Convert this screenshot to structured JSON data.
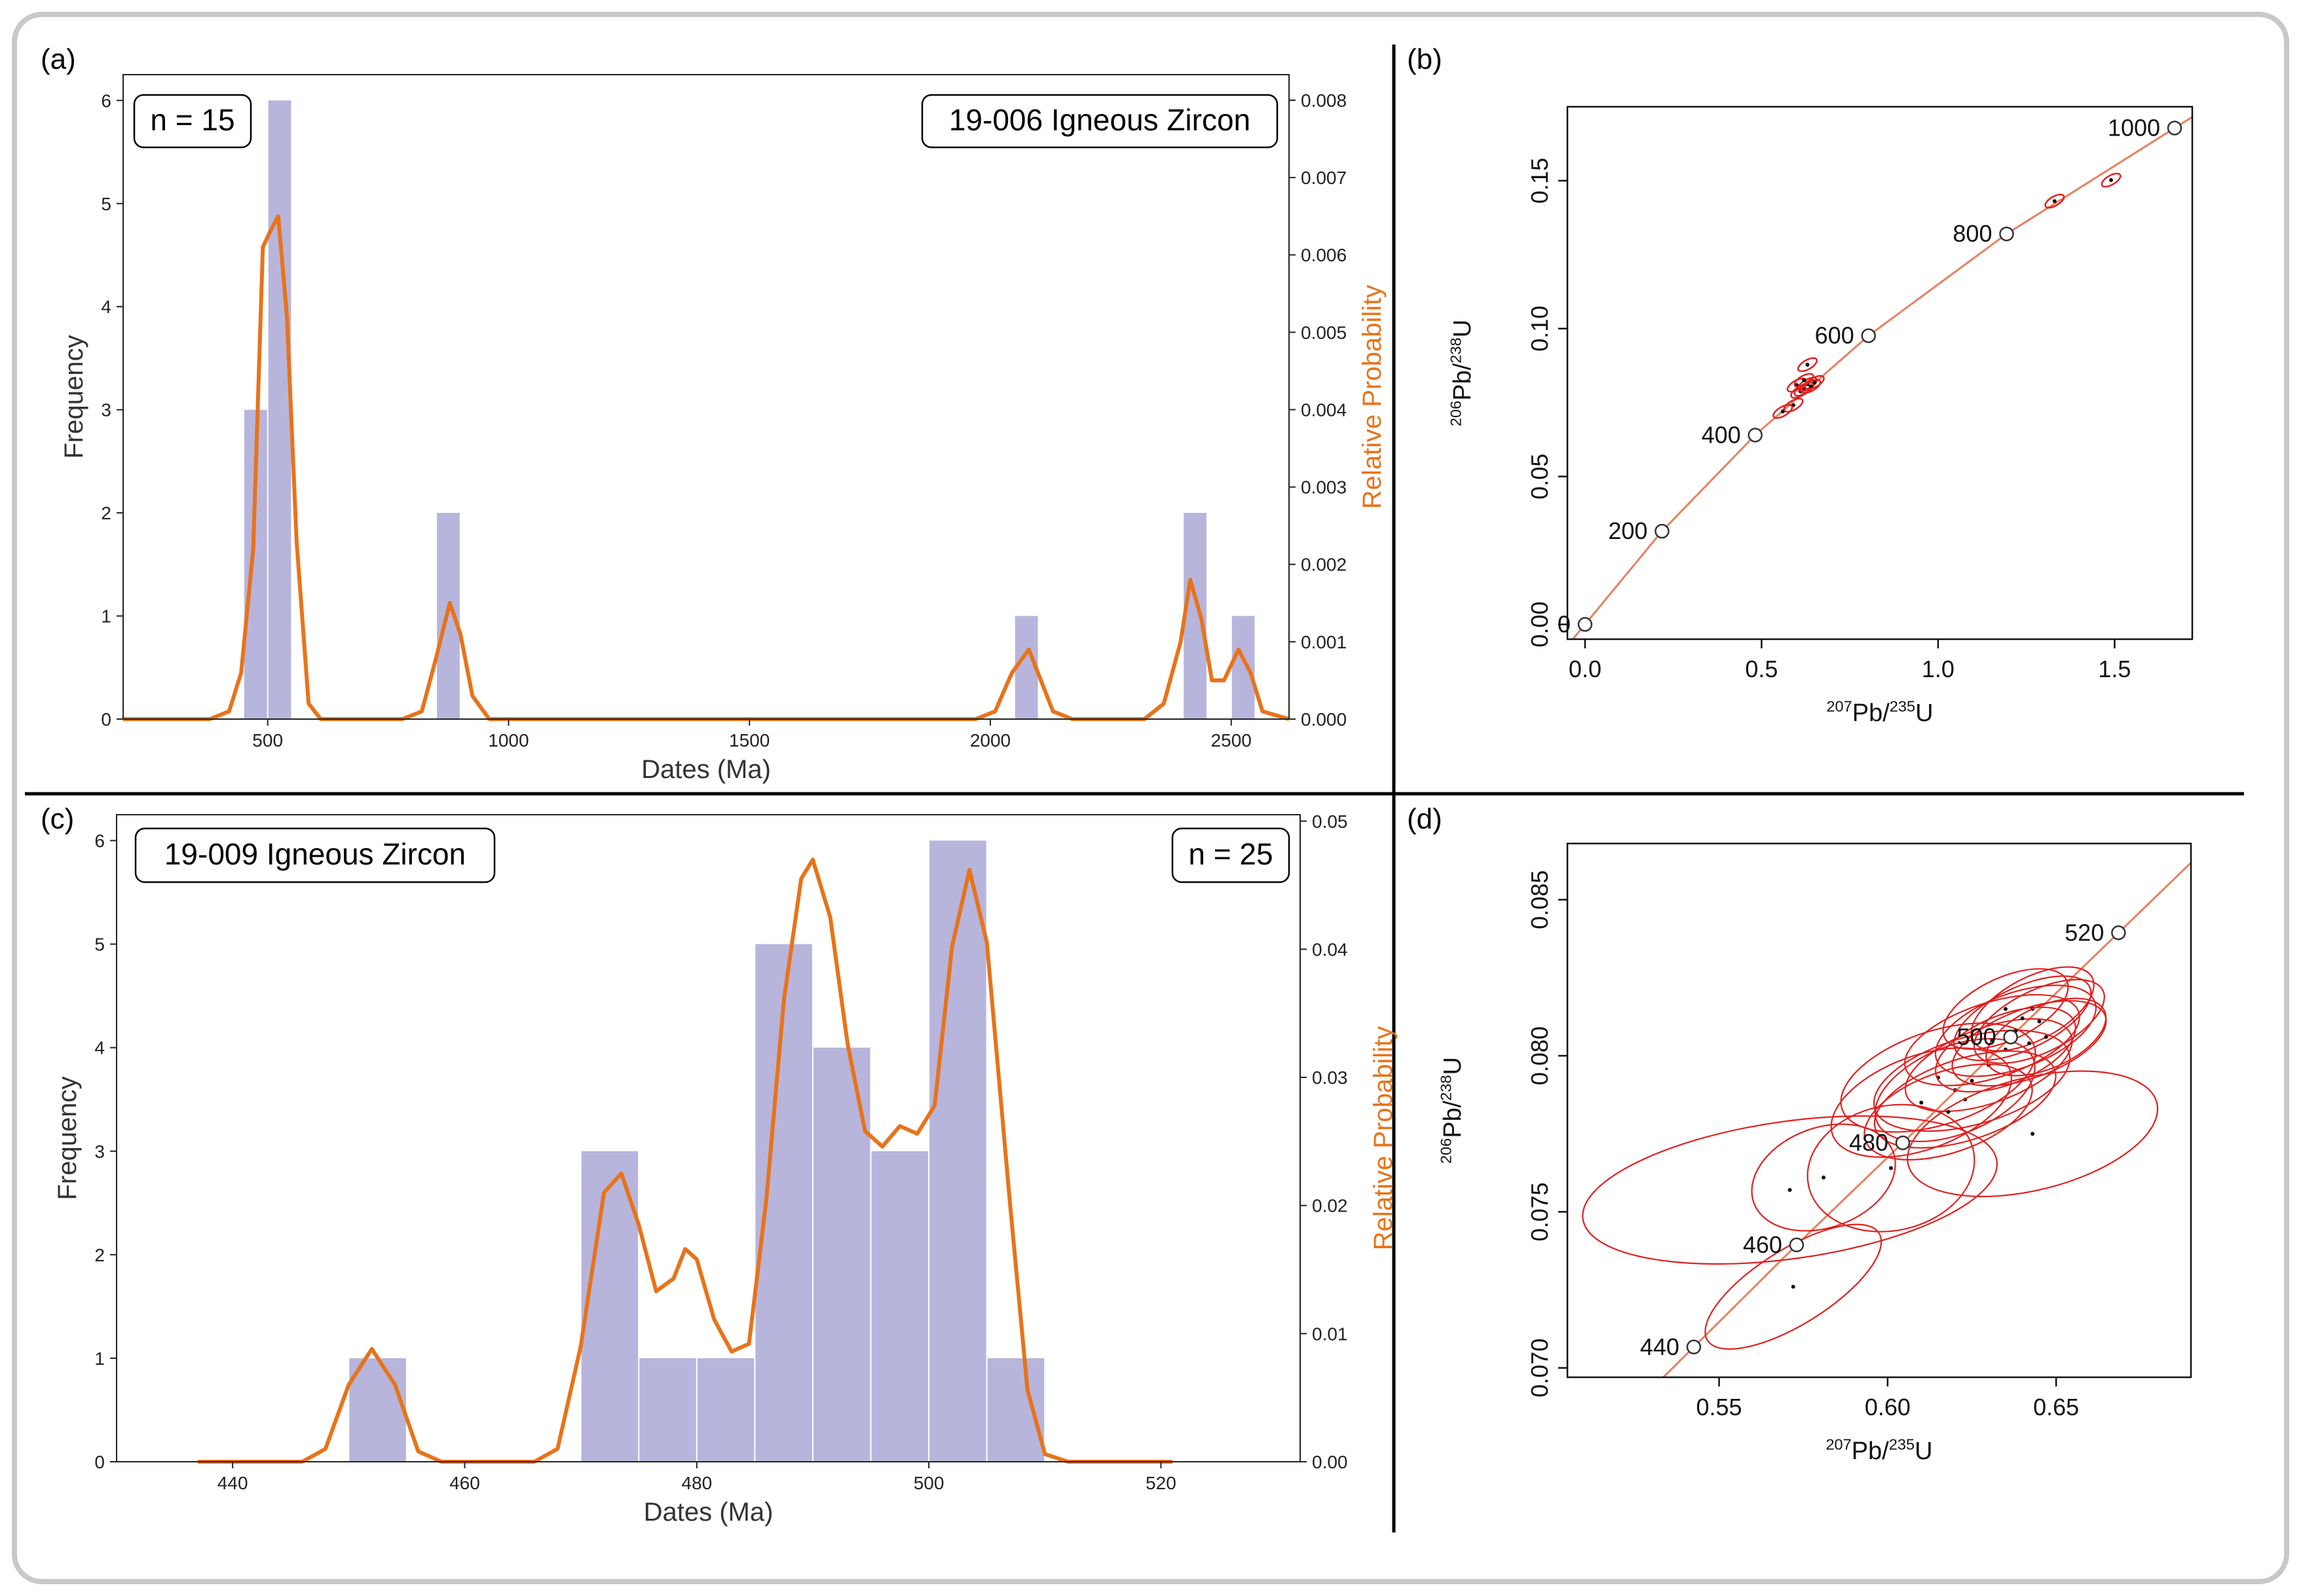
{
  "panels": {
    "a": {
      "letter": "(a)",
      "n_label": "n = 15",
      "sample_label": "19-006 Igneous Zircon"
    },
    "b": {
      "letter": "(b)"
    },
    "c": {
      "letter": "(c)",
      "n_label": "n = 25",
      "sample_label": "19-009 Igneous Zircon"
    },
    "d": {
      "letter": "(d)"
    }
  },
  "chart_data": [
    {
      "id": "a",
      "type": "bar",
      "xlabel": "Dates (Ma)",
      "ylabel": "Frequency",
      "y2label": "Relative Probability",
      "xlim": [
        200,
        2620
      ],
      "ylim": [
        0,
        6.25
      ],
      "y2lim": [
        0,
        0.00833
      ],
      "xticks": [
        500,
        1000,
        1500,
        2000,
        2500
      ],
      "yticks": [
        0,
        1,
        2,
        3,
        4,
        5,
        6
      ],
      "y2ticks": [
        "0.000",
        "0.001",
        "0.002",
        "0.003",
        "0.004",
        "0.005",
        "0.006",
        "0.007",
        "0.008"
      ],
      "bars": [
        {
          "x0": 450,
          "x1": 500,
          "value": 3
        },
        {
          "x0": 500,
          "x1": 550,
          "value": 6
        },
        {
          "x0": 850,
          "x1": 900,
          "value": 2
        },
        {
          "x0": 2050,
          "x1": 2100,
          "value": 1
        },
        {
          "x0": 2400,
          "x1": 2450,
          "value": 2
        },
        {
          "x0": 2500,
          "x1": 2550,
          "value": 1
        }
      ],
      "bar_color": "#b7b5dc",
      "curve_color": "#e8731a",
      "curve": [
        [
          200,
          0
        ],
        [
          380,
          0
        ],
        [
          420,
          0.0001
        ],
        [
          445,
          0.0006
        ],
        [
          470,
          0.0022
        ],
        [
          490,
          0.0061
        ],
        [
          505,
          0.0063
        ],
        [
          522,
          0.0065
        ],
        [
          540,
          0.0052
        ],
        [
          560,
          0.0023
        ],
        [
          585,
          0.0002
        ],
        [
          610,
          0
        ],
        [
          780,
          0
        ],
        [
          820,
          0.0001
        ],
        [
          850,
          0.0008
        ],
        [
          878,
          0.0015
        ],
        [
          900,
          0.0011
        ],
        [
          925,
          0.0003
        ],
        [
          960,
          0
        ],
        [
          1970,
          0
        ],
        [
          2010,
          0.0001
        ],
        [
          2045,
          0.0006
        ],
        [
          2080,
          0.0009
        ],
        [
          2105,
          0.0005
        ],
        [
          2130,
          0.0001
        ],
        [
          2170,
          0
        ],
        [
          2320,
          0
        ],
        [
          2360,
          0.0002
        ],
        [
          2395,
          0.001
        ],
        [
          2415,
          0.0018
        ],
        [
          2438,
          0.0013
        ],
        [
          2460,
          0.0005
        ],
        [
          2485,
          0.0005
        ],
        [
          2515,
          0.0009
        ],
        [
          2540,
          0.0006
        ],
        [
          2565,
          0.0001
        ],
        [
          2620,
          0
        ]
      ]
    },
    {
      "id": "b",
      "type": "scatter",
      "xlabel_main": "Pb/",
      "xlabel_sup1": "207",
      "xlabel_sup2": "235",
      "xlabel_tail": "U",
      "ylabel_main": "Pb/",
      "ylabel_sup1": "206",
      "ylabel_sup2": "238",
      "ylabel_tail": "U",
      "xlim": [
        -0.05,
        1.72
      ],
      "ylim": [
        -0.005,
        0.175
      ],
      "xticks": [
        "0.0",
        "0.5",
        "1.0",
        "1.5"
      ],
      "yticks": [
        "0.00",
        "0.05",
        "0.10",
        "0.15"
      ],
      "concordia_points": [
        {
          "age": "0",
          "x": 0.0,
          "y": 0.0
        },
        {
          "age": "200",
          "x": 0.218,
          "y": 0.0315
        },
        {
          "age": "400",
          "x": 0.482,
          "y": 0.064
        },
        {
          "age": "600",
          "x": 0.803,
          "y": 0.0976
        },
        {
          "age": "800",
          "x": 1.194,
          "y": 0.132
        },
        {
          "age": "1000",
          "x": 1.67,
          "y": 0.1678
        }
      ],
      "ellipse_centers": [
        [
          0.6,
          0.0809
        ],
        [
          0.61,
          0.0788
        ],
        [
          0.62,
          0.0795
        ],
        [
          0.63,
          0.0812
        ],
        [
          0.64,
          0.0805
        ],
        [
          0.62,
          0.0825
        ],
        [
          0.59,
          0.0741
        ],
        [
          0.56,
          0.072
        ],
        [
          0.65,
          0.0818
        ],
        [
          0.63,
          0.0878
        ],
        [
          1.33,
          0.1431
        ],
        [
          1.49,
          0.1502
        ]
      ],
      "curve_color": "#e88060",
      "ellipse_color": "#e02020"
    },
    {
      "id": "c",
      "type": "bar",
      "xlabel": "Dates (Ma)",
      "ylabel": "Frequency",
      "y2label": "Relative Probability",
      "xlim": [
        430,
        532
      ],
      "ylim": [
        0,
        6.25
      ],
      "y2lim": [
        0,
        0.0505
      ],
      "xticks": [
        440,
        460,
        480,
        500,
        520
      ],
      "yticks": [
        0,
        1,
        2,
        3,
        4,
        5,
        6
      ],
      "y2ticks": [
        "0.00",
        "0.01",
        "0.02",
        "0.03",
        "0.04",
        "0.05"
      ],
      "bars": [
        {
          "x0": 450,
          "x1": 455,
          "value": 1
        },
        {
          "x0": 470,
          "x1": 475,
          "value": 3
        },
        {
          "x0": 475,
          "x1": 480,
          "value": 1
        },
        {
          "x0": 480,
          "x1": 485,
          "value": 1
        },
        {
          "x0": 485,
          "x1": 490,
          "value": 5
        },
        {
          "x0": 490,
          "x1": 495,
          "value": 4
        },
        {
          "x0": 495,
          "x1": 500,
          "value": 3
        },
        {
          "x0": 500,
          "x1": 505,
          "value": 6
        },
        {
          "x0": 505,
          "x1": 510,
          "value": 1
        }
      ],
      "bar_color": "#b7b5dc",
      "curve_color": "#e8731a",
      "curve": [
        [
          437,
          0
        ],
        [
          446,
          0
        ],
        [
          448,
          0.001
        ],
        [
          450,
          0.006
        ],
        [
          452,
          0.0088
        ],
        [
          454,
          0.006
        ],
        [
          456,
          0.0008
        ],
        [
          458,
          0
        ],
        [
          466,
          0
        ],
        [
          468,
          0.001
        ],
        [
          470,
          0.009
        ],
        [
          472,
          0.021
        ],
        [
          473.5,
          0.0225
        ],
        [
          475,
          0.0185
        ],
        [
          476.5,
          0.0133
        ],
        [
          478,
          0.0143
        ],
        [
          479,
          0.0166
        ],
        [
          480,
          0.0158
        ],
        [
          481.5,
          0.0111
        ],
        [
          483,
          0.0086
        ],
        [
          484.5,
          0.0092
        ],
        [
          486,
          0.0205
        ],
        [
          487.5,
          0.036
        ],
        [
          489,
          0.0455
        ],
        [
          490,
          0.047
        ],
        [
          491.5,
          0.0425
        ],
        [
          493,
          0.0326
        ],
        [
          494.5,
          0.0258
        ],
        [
          496,
          0.0246
        ],
        [
          497.5,
          0.0262
        ],
        [
          499,
          0.0256
        ],
        [
          500.5,
          0.0278
        ],
        [
          502,
          0.0402
        ],
        [
          503.5,
          0.0462
        ],
        [
          505,
          0.0405
        ],
        [
          507,
          0.0201
        ],
        [
          508.5,
          0.0056
        ],
        [
          510,
          0.0006
        ],
        [
          512,
          0
        ],
        [
          521,
          0
        ]
      ]
    },
    {
      "id": "d",
      "type": "scatter",
      "xlabel_main": "Pb/",
      "xlabel_sup1": "207",
      "xlabel_sup2": "235",
      "xlabel_tail": "U",
      "ylabel_main": "Pb/",
      "ylabel_sup1": "206",
      "ylabel_sup2": "238",
      "ylabel_tail": "U",
      "xlim": [
        0.505,
        0.69
      ],
      "ylim": [
        0.0697,
        0.0868
      ],
      "xticks": [
        "0.55",
        "0.60",
        "0.65"
      ],
      "yticks": [
        "0.070",
        "0.075",
        "0.080",
        "0.085"
      ],
      "concordia_points": [
        {
          "age": "440",
          "x": 0.5425,
          "y": 0.07067
        },
        {
          "age": "460",
          "x": 0.573,
          "y": 0.07394
        },
        {
          "age": "480",
          "x": 0.6045,
          "y": 0.07721
        },
        {
          "age": "500",
          "x": 0.6365,
          "y": 0.0806
        },
        {
          "age": "520",
          "x": 0.6685,
          "y": 0.08394
        }
      ],
      "ellipses": [
        {
          "cx": 0.572,
          "cy": 0.0726,
          "rx": 0.03,
          "ry": 0.0012,
          "rot": -32
        },
        {
          "cx": 0.571,
          "cy": 0.0757,
          "rx": 0.062,
          "ry": 0.0022,
          "rot": -8
        },
        {
          "cx": 0.581,
          "cy": 0.0761,
          "rx": 0.022,
          "ry": 0.0016,
          "rot": -20
        },
        {
          "cx": 0.601,
          "cy": 0.0764,
          "rx": 0.025,
          "ry": 0.002,
          "rot": -12
        },
        {
          "cx": 0.61,
          "cy": 0.0785,
          "rx": 0.028,
          "ry": 0.0015,
          "rot": -20
        },
        {
          "cx": 0.615,
          "cy": 0.0793,
          "rx": 0.03,
          "ry": 0.0015,
          "rot": -18
        },
        {
          "cx": 0.62,
          "cy": 0.0789,
          "rx": 0.025,
          "ry": 0.0014,
          "rot": -22
        },
        {
          "cx": 0.623,
          "cy": 0.0786,
          "rx": 0.028,
          "ry": 0.0013,
          "rot": -18
        },
        {
          "cx": 0.625,
          "cy": 0.0792,
          "rx": 0.03,
          "ry": 0.0014,
          "rot": -16
        },
        {
          "cx": 0.63,
          "cy": 0.0797,
          "rx": 0.026,
          "ry": 0.0012,
          "rot": -20
        },
        {
          "cx": 0.635,
          "cy": 0.0802,
          "rx": 0.022,
          "ry": 0.0011,
          "rot": -22
        },
        {
          "cx": 0.638,
          "cy": 0.0808,
          "rx": 0.025,
          "ry": 0.0012,
          "rot": -20
        },
        {
          "cx": 0.64,
          "cy": 0.0812,
          "rx": 0.022,
          "ry": 0.001,
          "rot": -25
        },
        {
          "cx": 0.643,
          "cy": 0.0815,
          "rx": 0.02,
          "ry": 0.001,
          "rot": -28
        },
        {
          "cx": 0.645,
          "cy": 0.0811,
          "rx": 0.021,
          "ry": 0.001,
          "rot": -26
        },
        {
          "cx": 0.647,
          "cy": 0.0806,
          "rx": 0.019,
          "ry": 0.001,
          "rot": -24
        },
        {
          "cx": 0.643,
          "cy": 0.0775,
          "rx": 0.038,
          "ry": 0.0018,
          "rot": -14
        },
        {
          "cx": 0.631,
          "cy": 0.0805,
          "rx": 0.027,
          "ry": 0.0012,
          "rot": -18
        },
        {
          "cx": 0.642,
          "cy": 0.0804,
          "rx": 0.024,
          "ry": 0.0011,
          "rot": -20
        },
        {
          "cx": 0.618,
          "cy": 0.0782,
          "rx": 0.026,
          "ry": 0.0013,
          "rot": -19
        },
        {
          "cx": 0.635,
          "cy": 0.0815,
          "rx": 0.02,
          "ry": 0.001,
          "rot": -25
        }
      ],
      "curve_color": "#e88060",
      "ellipse_color": "#e02020"
    }
  ]
}
